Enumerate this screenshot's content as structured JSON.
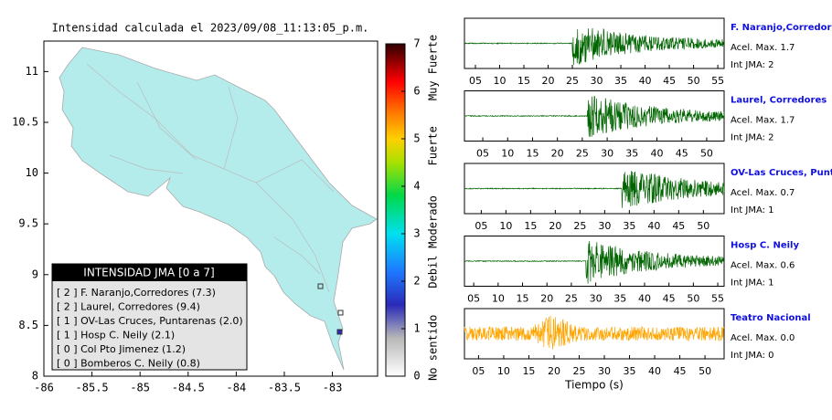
{
  "chart_data": [
    {
      "type": "map",
      "title": "Intensidad calculada el 2023/09/08_11:13:05_p.m.",
      "xlim": [
        -86,
        -82.53
      ],
      "ylim": [
        8,
        11.3
      ],
      "xticks": [
        -86,
        -85.5,
        -85,
        -84.5,
        -84,
        -83.5,
        -83
      ],
      "yticks": [
        8,
        8.5,
        9,
        9.5,
        10,
        10.5,
        11
      ],
      "legend": {
        "title": "INTENSIDAD JMA [0 a 7]",
        "entries": [
          "[ 2 ]  F. Naranjo,Corredores (7.3)",
          "[ 2 ]  Laurel, Corredores (9.4)",
          "[ 1 ]  OV-Las Cruces, Puntarenas (2.0)",
          "[ 1 ]  Hosp C. Neily (2.1)",
          "[ 0 ]  Col Pto Jimenez (1.2)",
          "[ 0 ]  Bomberos C. Neily (0.8)"
        ]
      }
    },
    {
      "type": "colorbar",
      "ylim": [
        0,
        7
      ],
      "yticks": [
        0,
        1,
        2,
        3,
        4,
        5,
        6,
        7
      ],
      "colors": [
        {
          "value": 0,
          "color": "#ffffff"
        },
        {
          "value": 0.8,
          "color": "#b8b8b8"
        },
        {
          "value": 1.5,
          "color": "#2a2ab8"
        },
        {
          "value": 2.2,
          "color": "#1e78ff"
        },
        {
          "value": 3,
          "color": "#00e0f0"
        },
        {
          "value": 3.8,
          "color": "#00d84a"
        },
        {
          "value": 4.5,
          "color": "#a8e000"
        },
        {
          "value": 5,
          "color": "#ffd000"
        },
        {
          "value": 5.6,
          "color": "#ff7000"
        },
        {
          "value": 6.2,
          "color": "#ff0000"
        },
        {
          "value": 7,
          "color": "#300000"
        }
      ],
      "scale_labels": [
        {
          "value": 0.6,
          "label": "No sentido"
        },
        {
          "value": 2.2,
          "label": "Debil"
        },
        {
          "value": 3.25,
          "label": "Moderado"
        },
        {
          "value": 4.85,
          "label": "Fuerte"
        },
        {
          "value": 6.5,
          "label": "Muy Fuerte"
        }
      ]
    },
    {
      "type": "waveform",
      "name": "F. Naranjo,Corredores",
      "accel_label": "Acel. Max. 1.7",
      "jma_label": "Int JMA: 2",
      "color": "#006400",
      "onset": 25,
      "xlim": [
        2.74,
        56.3
      ],
      "xticks": [
        {
          "value": 5,
          "label": "05"
        },
        10,
        15,
        20,
        25,
        30,
        35,
        40,
        45,
        50,
        55
      ]
    },
    {
      "type": "waveform",
      "name": "Laurel, Corredores",
      "accel_label": "Acel. Max. 1.7",
      "jma_label": "Int JMA: 2",
      "color": "#006400",
      "onset": 26,
      "xlim": [
        1.32,
        53.5
      ],
      "xticks": [
        {
          "value": 5,
          "label": "05"
        },
        10,
        15,
        20,
        25,
        30,
        35,
        40,
        45,
        50
      ]
    },
    {
      "type": "waveform",
      "name": "OV-Las Cruces, Puntar",
      "accel_label": "Acel. Max. 0.7",
      "jma_label": "Int JMA: 1",
      "color": "#006400",
      "onset": 33.5,
      "xlim": [
        1.6,
        54.2
      ],
      "xticks": [
        {
          "value": 5,
          "label": "05"
        },
        10,
        15,
        20,
        25,
        30,
        35,
        40,
        45,
        50
      ]
    },
    {
      "type": "waveform",
      "name": "Hosp C. Neily",
      "accel_label": "Acel. Max. 0.6",
      "jma_label": "Int JMA: 1",
      "color": "#006400",
      "onset": 28,
      "xlim": [
        3.1,
        56.3
      ],
      "xticks": [
        {
          "value": 5,
          "label": "05"
        },
        10,
        15,
        20,
        25,
        30,
        35,
        40,
        45,
        50,
        55
      ]
    },
    {
      "type": "waveform",
      "name": "Teatro Nacional",
      "accel_label": "Acel. Max. 0.0",
      "jma_label": "Int JMA: 0",
      "color": "#ffa500",
      "onset": null,
      "xlim": [
        2.2,
        53.8
      ],
      "xticks": [
        {
          "value": 5,
          "label": "05"
        },
        10,
        15,
        20,
        25,
        30,
        35,
        40,
        45,
        50
      ],
      "xlabel": "Tiempo (s)"
    }
  ]
}
